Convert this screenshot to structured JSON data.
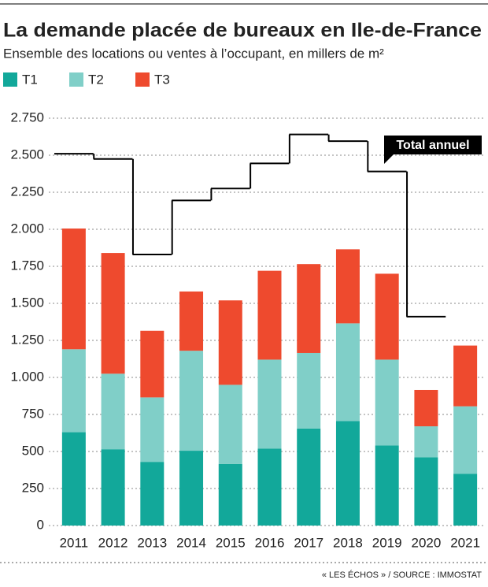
{
  "chart_data": {
    "type": "stacked_bar",
    "title": "La demande placée de bureaux en Ile-de-France",
    "subtitle": "Ensemble des locations ou ventes à l’occupant, en millers de m²",
    "source": "« LES ÉCHOS » / SOURCE : IMMOSTAT",
    "categories": [
      "2011",
      "2012",
      "2013",
      "2014",
      "2015",
      "2016",
      "2017",
      "2018",
      "2019",
      "2020",
      "2021"
    ],
    "series": [
      {
        "name": "T1",
        "color": "#12a89a",
        "values": [
          630,
          515,
          430,
          505,
          415,
          520,
          655,
          705,
          540,
          460,
          350
        ]
      },
      {
        "name": "T2",
        "color": "#80cfc8",
        "values": [
          560,
          510,
          435,
          675,
          535,
          600,
          510,
          660,
          580,
          210,
          455
        ]
      },
      {
        "name": "T3",
        "color": "#ee4a2e",
        "values": [
          815,
          815,
          450,
          400,
          570,
          600,
          600,
          500,
          580,
          245,
          410
        ]
      }
    ],
    "total": {
      "name": "Total annuel",
      "color": "#000000",
      "values": [
        2510,
        2475,
        1830,
        2195,
        2275,
        2445,
        2640,
        2595,
        2390,
        1410,
        null
      ]
    },
    "ylim": [
      0,
      2750
    ],
    "yticks": [
      0,
      250,
      500,
      750,
      {
        "value": 1000,
        "label": "1.000"
      },
      {
        "value": 1250,
        "label": "1.250"
      },
      {
        "value": 1500,
        "label": "1.500"
      },
      {
        "value": 1750,
        "label": "1.750"
      },
      {
        "value": 2000,
        "label": "2.000"
      },
      {
        "value": 2250,
        "label": "2.250"
      },
      {
        "value": 2500,
        "label": "2.500"
      },
      {
        "value": 2750,
        "label": "2.750"
      }
    ],
    "grid": true
  }
}
